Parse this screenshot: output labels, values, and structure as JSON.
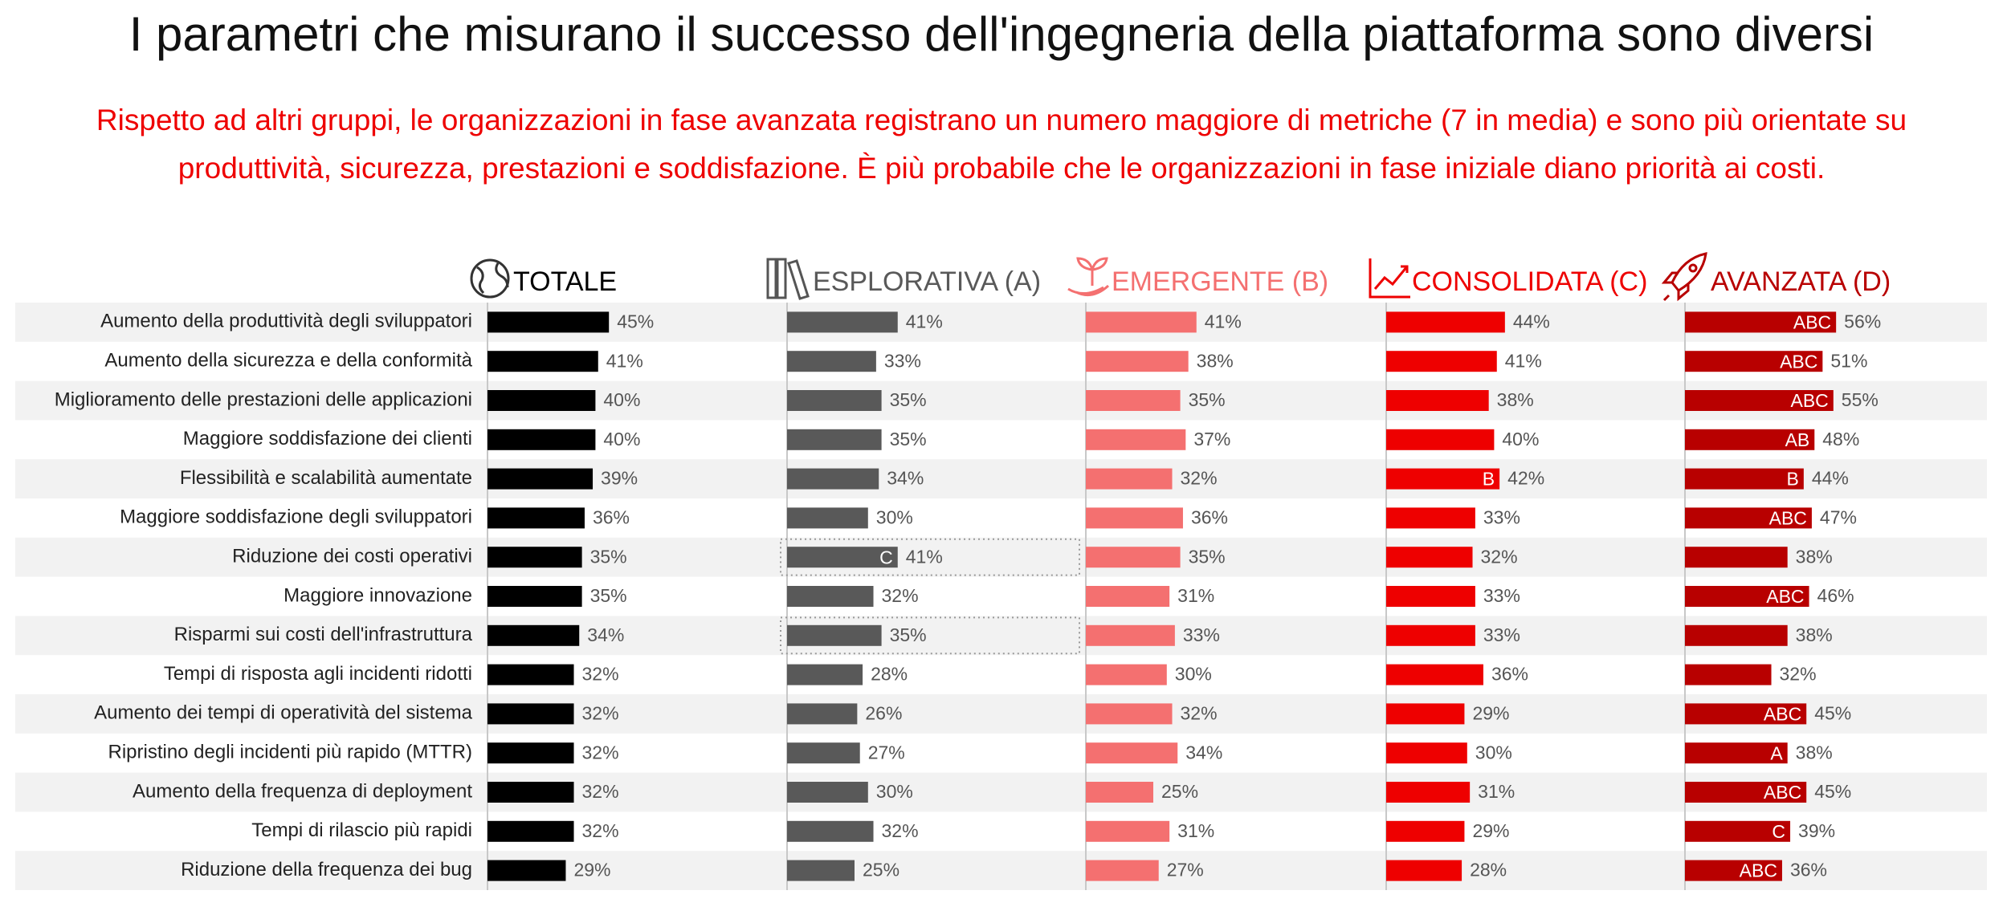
{
  "chart_data": {
    "type": "bar",
    "title": "I parametri che misurano il successo dell'ingegneria della piattaforma sono diversi",
    "subtitle": "Rispetto ad altri gruppi, le organizzazioni in fase avanzata registrano un numero maggiore di metriche (7 in media) e sono più orientate su produttività, sicurezza, prestazioni e soddisfazione. È più probabile che le organizzazioni in fase iniziale diano priorità ai costi.",
    "categories": [
      "Aumento della produttività degli sviluppatori",
      "Aumento della sicurezza e della conformità",
      "Miglioramento delle prestazioni delle applicazioni",
      "Maggiore soddisfazione dei clienti",
      "Flessibilità e scalabilità aumentate",
      "Maggiore soddisfazione degli sviluppatori",
      "Riduzione dei costi operativi",
      "Maggiore innovazione",
      "Risparmi sui costi dell'infrastruttura",
      "Tempi di risposta agli incidenti ridotti",
      "Aumento dei tempi di operatività del sistema",
      "Ripristino degli incidenti più rapido (MTTR)",
      "Aumento della frequenza di deployment",
      "Tempi di rilascio più rapidi",
      "Riduzione della frequenza dei bug"
    ],
    "xlim": [
      0,
      100
    ],
    "series": [
      {
        "name": "TOTALE",
        "color": "#000000",
        "values": [
          45,
          41,
          40,
          40,
          39,
          36,
          35,
          35,
          34,
          32,
          32,
          32,
          32,
          32,
          29
        ],
        "value_labels": [
          "45%",
          "41%",
          "40%",
          "40%",
          "39%",
          "36%",
          "35%",
          "35%",
          "34%",
          "32%",
          "32%",
          "32%",
          "32%",
          "32%",
          "29%"
        ],
        "significance": [
          null,
          null,
          null,
          null,
          null,
          null,
          null,
          null,
          null,
          null,
          null,
          null,
          null,
          null,
          null
        ]
      },
      {
        "name": "ESPLORATIVA (A)",
        "color": "#595959",
        "values": [
          41,
          33,
          35,
          35,
          34,
          30,
          41,
          32,
          35,
          28,
          26,
          27,
          30,
          32,
          25
        ],
        "value_labels": [
          "41%",
          "33%",
          "35%",
          "35%",
          "34%",
          "30%",
          "41%",
          "32%",
          "35%",
          "28%",
          "26%",
          "27%",
          "30%",
          "32%",
          "25%"
        ],
        "significance": [
          null,
          null,
          null,
          null,
          null,
          null,
          "C",
          null,
          null,
          null,
          null,
          null,
          null,
          null,
          null
        ],
        "highlight": [
          6,
          8
        ]
      },
      {
        "name": "EMERGENTE (B)",
        "color": "#f47070",
        "values": [
          41,
          38,
          35,
          37,
          32,
          36,
          35,
          31,
          33,
          30,
          32,
          34,
          25,
          31,
          27
        ],
        "value_labels": [
          "41%",
          "38%",
          "35%",
          "37%",
          "32%",
          "36%",
          "35%",
          "31%",
          "33%",
          "30%",
          "32%",
          "34%",
          "25%",
          "31%",
          "27%"
        ],
        "significance": [
          null,
          null,
          null,
          null,
          null,
          null,
          null,
          null,
          null,
          null,
          null,
          null,
          null,
          null,
          null
        ]
      },
      {
        "name": "CONSOLIDATA (C)",
        "color": "#ee0000",
        "values": [
          44,
          41,
          38,
          40,
          42,
          33,
          32,
          33,
          33,
          36,
          29,
          30,
          31,
          29,
          28
        ],
        "value_labels": [
          "44%",
          "41%",
          "38%",
          "40%",
          "42%",
          "33%",
          "32%",
          "33%",
          "33%",
          "36%",
          "29%",
          "30%",
          "31%",
          "29%",
          "28%"
        ],
        "significance": [
          null,
          null,
          null,
          null,
          "B",
          null,
          null,
          null,
          null,
          null,
          null,
          null,
          null,
          null,
          null
        ]
      },
      {
        "name": "AVANZATA (D)",
        "color": "#b80000",
        "values": [
          56,
          51,
          55,
          48,
          44,
          47,
          38,
          46,
          38,
          32,
          45,
          38,
          45,
          39,
          36
        ],
        "value_labels": [
          "56%",
          "51%",
          "55%",
          "48%",
          "44%",
          "47%",
          "38%",
          "46%",
          "38%",
          "32%",
          "45%",
          "38%",
          "45%",
          "39%",
          "36%"
        ],
        "significance": [
          "ABC",
          "ABC",
          "ABC",
          "AB",
          "B",
          "ABC",
          null,
          "ABC",
          null,
          null,
          "ABC",
          "A",
          "ABC",
          "C",
          "ABC"
        ]
      }
    ]
  }
}
